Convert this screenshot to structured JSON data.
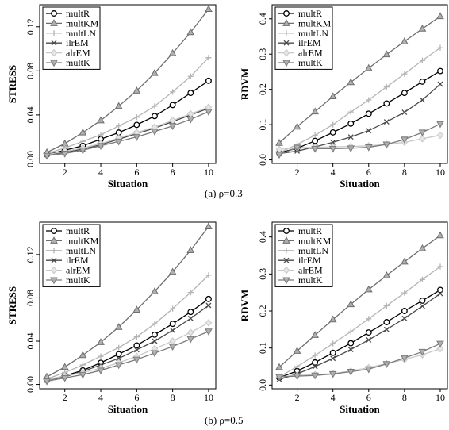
{
  "captions": {
    "a": "(a)  ρ=0.3",
    "b": "(b)  ρ=0.5"
  },
  "colors": {
    "multR": "#000000",
    "multKM": "#6e6e6e",
    "multLN": "#b4b4b4",
    "ilrEM": "#4a4a4a",
    "alrEM": "#c8c8c8",
    "multK": "#7a7a7a"
  },
  "markers": {
    "multR": "circle",
    "multKM": "triangle-up",
    "multLN": "plus",
    "ilrEM": "cross",
    "alrEM": "diamond",
    "multK": "triangle-down"
  },
  "chart_data": [
    {
      "type": "line",
      "panel": "a-left",
      "xlabel": "Situation",
      "ylabel": "STRESS",
      "x": [
        1,
        2,
        3,
        4,
        5,
        6,
        7,
        8,
        9,
        10
      ],
      "xticks": [
        "2",
        "4",
        "6",
        "8",
        "10"
      ],
      "yticks": [
        "0.00",
        "0.04",
        "0.08",
        "0.12"
      ],
      "xlim": [
        0.6,
        10.4
      ],
      "ylim": [
        -0.004,
        0.14
      ],
      "legend": "top-left",
      "series": [
        {
          "name": "multR",
          "values": [
            0.004,
            0.008,
            0.012,
            0.018,
            0.024,
            0.031,
            0.039,
            0.049,
            0.06,
            0.071
          ]
        },
        {
          "name": "multKM",
          "values": [
            0.006,
            0.014,
            0.024,
            0.035,
            0.048,
            0.062,
            0.078,
            0.096,
            0.115,
            0.136
          ]
        },
        {
          "name": "multLN",
          "values": [
            0.005,
            0.01,
            0.016,
            0.022,
            0.03,
            0.038,
            0.048,
            0.061,
            0.075,
            0.092
          ]
        },
        {
          "name": "ilrEM",
          "values": [
            0.004,
            0.006,
            0.009,
            0.013,
            0.018,
            0.023,
            0.028,
            0.034,
            0.04,
            0.046
          ]
        },
        {
          "name": "alrEM",
          "values": [
            0.004,
            0.007,
            0.01,
            0.014,
            0.019,
            0.024,
            0.029,
            0.035,
            0.041,
            0.047
          ]
        },
        {
          "name": "multK",
          "values": [
            0.003,
            0.005,
            0.008,
            0.012,
            0.016,
            0.02,
            0.025,
            0.03,
            0.036,
            0.043
          ]
        }
      ]
    },
    {
      "type": "line",
      "panel": "a-right",
      "xlabel": "Situation",
      "ylabel": "RDVM",
      "x": [
        1,
        2,
        3,
        4,
        5,
        6,
        7,
        8,
        9,
        10
      ],
      "xticks": [
        "2",
        "4",
        "6",
        "8",
        "10"
      ],
      "yticks": [
        "0.0",
        "0.1",
        "0.2",
        "0.3",
        "0.4"
      ],
      "xlim": [
        0.6,
        10.4
      ],
      "ylim": [
        -0.01,
        0.44
      ],
      "legend": "top-left",
      "series": [
        {
          "name": "multR",
          "values": [
            0.02,
            0.033,
            0.054,
            0.078,
            0.103,
            0.131,
            0.16,
            0.19,
            0.222,
            0.252
          ]
        },
        {
          "name": "multKM",
          "values": [
            0.048,
            0.094,
            0.137,
            0.18,
            0.22,
            0.26,
            0.299,
            0.336,
            0.372,
            0.407
          ]
        },
        {
          "name": "multLN",
          "values": [
            0.02,
            0.044,
            0.07,
            0.1,
            0.136,
            0.17,
            0.207,
            0.244,
            0.282,
            0.318
          ]
        },
        {
          "name": "ilrEM",
          "values": [
            0.018,
            0.025,
            0.037,
            0.05,
            0.065,
            0.083,
            0.108,
            0.135,
            0.17,
            0.215
          ]
        },
        {
          "name": "alrEM",
          "values": [
            0.03,
            0.034,
            0.036,
            0.037,
            0.038,
            0.04,
            0.044,
            0.05,
            0.06,
            0.07
          ]
        },
        {
          "name": "multK",
          "values": [
            0.015,
            0.035,
            0.032,
            0.032,
            0.033,
            0.036,
            0.044,
            0.058,
            0.078,
            0.102
          ]
        }
      ]
    },
    {
      "type": "line",
      "panel": "b-left",
      "xlabel": "Situation",
      "ylabel": "STRESS",
      "x": [
        1,
        2,
        3,
        4,
        5,
        6,
        7,
        8,
        9,
        10
      ],
      "xticks": [
        "2",
        "4",
        "6",
        "8",
        "10"
      ],
      "yticks": [
        "0.00",
        "0.04",
        "0.08",
        "0.12"
      ],
      "xlim": [
        0.6,
        10.4
      ],
      "ylim": [
        -0.004,
        0.15
      ],
      "legend": "top-left",
      "series": [
        {
          "name": "multR",
          "values": [
            0.004,
            0.008,
            0.013,
            0.02,
            0.028,
            0.036,
            0.046,
            0.056,
            0.067,
            0.079
          ]
        },
        {
          "name": "multKM",
          "values": [
            0.007,
            0.016,
            0.027,
            0.039,
            0.053,
            0.069,
            0.086,
            0.104,
            0.124,
            0.146
          ]
        },
        {
          "name": "multLN",
          "values": [
            0.005,
            0.011,
            0.018,
            0.026,
            0.034,
            0.044,
            0.056,
            0.07,
            0.085,
            0.101
          ]
        },
        {
          "name": "ilrEM",
          "values": [
            0.004,
            0.007,
            0.012,
            0.018,
            0.024,
            0.032,
            0.04,
            0.05,
            0.061,
            0.073
          ]
        },
        {
          "name": "alrEM",
          "values": [
            0.004,
            0.008,
            0.011,
            0.015,
            0.02,
            0.026,
            0.033,
            0.04,
            0.048,
            0.057
          ]
        },
        {
          "name": "multK",
          "values": [
            0.003,
            0.006,
            0.009,
            0.013,
            0.018,
            0.023,
            0.029,
            0.035,
            0.042,
            0.049
          ]
        }
      ]
    },
    {
      "type": "line",
      "panel": "b-right",
      "xlabel": "Situation",
      "ylabel": "RDVM",
      "x": [
        1,
        2,
        3,
        4,
        5,
        6,
        7,
        8,
        9,
        10
      ],
      "xticks": [
        "2",
        "4",
        "6",
        "8",
        "10"
      ],
      "yticks": [
        "0.0",
        "0.1",
        "0.2",
        "0.3",
        "0.4"
      ],
      "xlim": [
        0.6,
        10.4
      ],
      "ylim": [
        -0.01,
        0.44
      ],
      "legend": "top-left",
      "series": [
        {
          "name": "multR",
          "values": [
            0.02,
            0.038,
            0.061,
            0.087,
            0.113,
            0.142,
            0.17,
            0.2,
            0.228,
            0.257
          ]
        },
        {
          "name": "multKM",
          "values": [
            0.048,
            0.092,
            0.135,
            0.177,
            0.218,
            0.258,
            0.296,
            0.333,
            0.369,
            0.404
          ]
        },
        {
          "name": "multLN",
          "values": [
            0.022,
            0.05,
            0.08,
            0.112,
            0.144,
            0.179,
            0.214,
            0.249,
            0.285,
            0.32
          ]
        },
        {
          "name": "ilrEM",
          "values": [
            0.015,
            0.03,
            0.05,
            0.072,
            0.096,
            0.122,
            0.15,
            0.18,
            0.213,
            0.247
          ]
        },
        {
          "name": "alrEM",
          "values": [
            0.022,
            0.026,
            0.028,
            0.031,
            0.038,
            0.047,
            0.058,
            0.069,
            0.082,
            0.098
          ]
        },
        {
          "name": "multK",
          "values": [
            0.022,
            0.024,
            0.026,
            0.03,
            0.036,
            0.043,
            0.057,
            0.073,
            0.09,
            0.112
          ]
        }
      ]
    }
  ]
}
